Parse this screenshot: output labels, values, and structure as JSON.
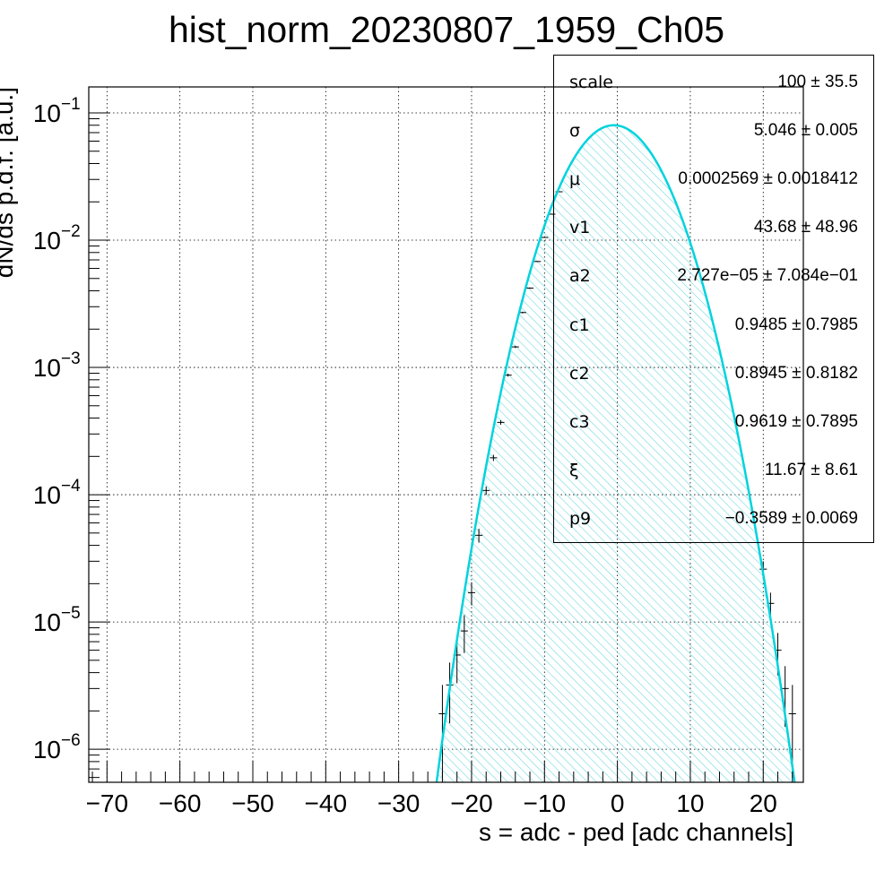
{
  "chart_data": {
    "type": "histogram",
    "title": "hist_norm_20230807_1959_Ch05",
    "xlabel": "s = adc - ped [adc channels]",
    "ylabel": "dN/ds p.d.f. [a.u.]",
    "xlim": [
      -72.5,
      25.5
    ],
    "ylim": [
      5.5e-07,
      0.16
    ],
    "yscale": "log",
    "grid": true,
    "xticks": [
      -70,
      -60,
      -50,
      -40,
      -30,
      -20,
      -10,
      0,
      10,
      20
    ],
    "xtick_labels": [
      "−70",
      "−60",
      "−50",
      "−40",
      "−30",
      "−20",
      "−10",
      "0",
      "10",
      "20"
    ],
    "yticks": [
      {
        "value": 0.1,
        "mant": "10",
        "exp": "−1"
      },
      {
        "value": 0.01,
        "mant": "10",
        "exp": "−2"
      },
      {
        "value": 0.001,
        "mant": "10",
        "exp": "−3"
      },
      {
        "value": 0.0001,
        "mant": "10",
        "exp": "−4"
      },
      {
        "value": 1e-05,
        "mant": "10",
        "exp": "−5"
      },
      {
        "value": 1e-06,
        "mant": "10",
        "exp": "−6"
      }
    ],
    "histogram_points": {
      "x": [
        -24,
        -23,
        -22,
        -21,
        -20,
        -19,
        -18,
        -17,
        -16,
        -15,
        -14,
        -13,
        -12,
        -11,
        -10,
        -9,
        -8,
        20,
        21,
        22,
        23,
        24
      ],
      "y": [
        1.9e-06,
        3.2e-06,
        5.5e-06,
        8.5e-06,
        1.7e-05,
        4.8e-05,
        0.000108,
        0.000195,
        0.00037,
        0.00087,
        0.00145,
        0.0027,
        0.0042,
        0.0068,
        0.0105,
        0.016,
        0.024,
        2.6e-05,
        1.4e-05,
        6e-06,
        3e-06,
        1.9e-06
      ],
      "yerr": [
        1.3e-06,
        1.6e-06,
        2.2e-06,
        2.8e-06,
        3.5e-06,
        6e-06,
        8e-06,
        1.1e-05,
        1.5e-05,
        2.3e-05,
        3e-05,
        4e-05,
        5e-05,
        6e-05,
        8e-05,
        0.0001,
        0.00012,
        4e-06,
        3e-06,
        2.2e-06,
        1.5e-06,
        1.3e-06
      ]
    },
    "fit": {
      "series_color": "#00d3dd",
      "fill_color": "#6fd8df",
      "peak_x": -0.5,
      "peak_y": 0.08,
      "x_low": -24.8,
      "x_high": 24.3
    },
    "stats": [
      {
        "name": "scale",
        "value": "100 ± 35.5"
      },
      {
        "name": "σ",
        "value": "5.046 ± 0.005"
      },
      {
        "name": "μ",
        "value": "0.0002569 ± 0.0018412"
      },
      {
        "name": "v1",
        "value": "43.68 ± 48.96"
      },
      {
        "name": "a2",
        "value": "2.727e−05 ± 7.084e−01"
      },
      {
        "name": "c1",
        "value": "0.9485 ± 0.7985"
      },
      {
        "name": "c2",
        "value": "0.8945 ± 0.8182"
      },
      {
        "name": "c3",
        "value": "0.9619 ± 0.7895"
      },
      {
        "name": "ξ",
        "value": "11.67 ± 8.61"
      },
      {
        "name": "p9",
        "value": "−0.3589 ± 0.0069"
      }
    ]
  }
}
